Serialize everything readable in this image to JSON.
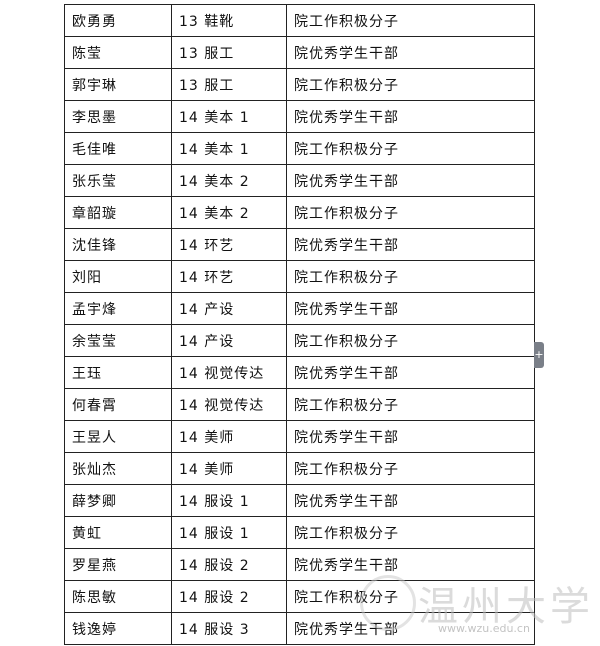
{
  "table": {
    "rows": [
      [
        "欧勇勇",
        "13 鞋靴",
        "院工作积极分子"
      ],
      [
        "陈莹",
        "13 服工",
        "院优秀学生干部"
      ],
      [
        "郭宇琳",
        "13 服工",
        "院工作积极分子"
      ],
      [
        "李思墨",
        "14 美本 1",
        "院优秀学生干部"
      ],
      [
        "毛佳唯",
        "14 美本 1",
        "院工作积极分子"
      ],
      [
        "张乐莹",
        "14 美本 2",
        "院优秀学生干部"
      ],
      [
        "章韶璇",
        "14 美本 2",
        "院工作积极分子"
      ],
      [
        "沈佳锋",
        "14 环艺",
        "院优秀学生干部"
      ],
      [
        "刘阳",
        "14 环艺",
        "院工作积极分子"
      ],
      [
        "孟宇烽",
        "14 产设",
        "院优秀学生干部"
      ],
      [
        "余莹莹",
        "14 产设",
        "院工作积极分子"
      ],
      [
        "王珏",
        "14 视觉传达",
        "院优秀学生干部"
      ],
      [
        "何春霄",
        "14 视觉传达",
        "院工作积极分子"
      ],
      [
        "王昱人",
        "14 美师",
        "院优秀学生干部"
      ],
      [
        "张灿杰",
        "14 美师",
        "院工作积极分子"
      ],
      [
        "薛梦卿",
        "14 服设 1",
        "院优秀学生干部"
      ],
      [
        "黄虹",
        "14 服设 1",
        "院工作积极分子"
      ],
      [
        "罗星燕",
        "14 服设 2",
        "院优秀学生干部"
      ],
      [
        "陈思敏",
        "14 服设 2",
        "院工作积极分子"
      ],
      [
        "钱逸婷",
        "14 服设 3",
        "院优秀学生干部"
      ]
    ]
  },
  "watermark": {
    "name": "温州大学",
    "url": "www.wzu.edu.cn"
  }
}
